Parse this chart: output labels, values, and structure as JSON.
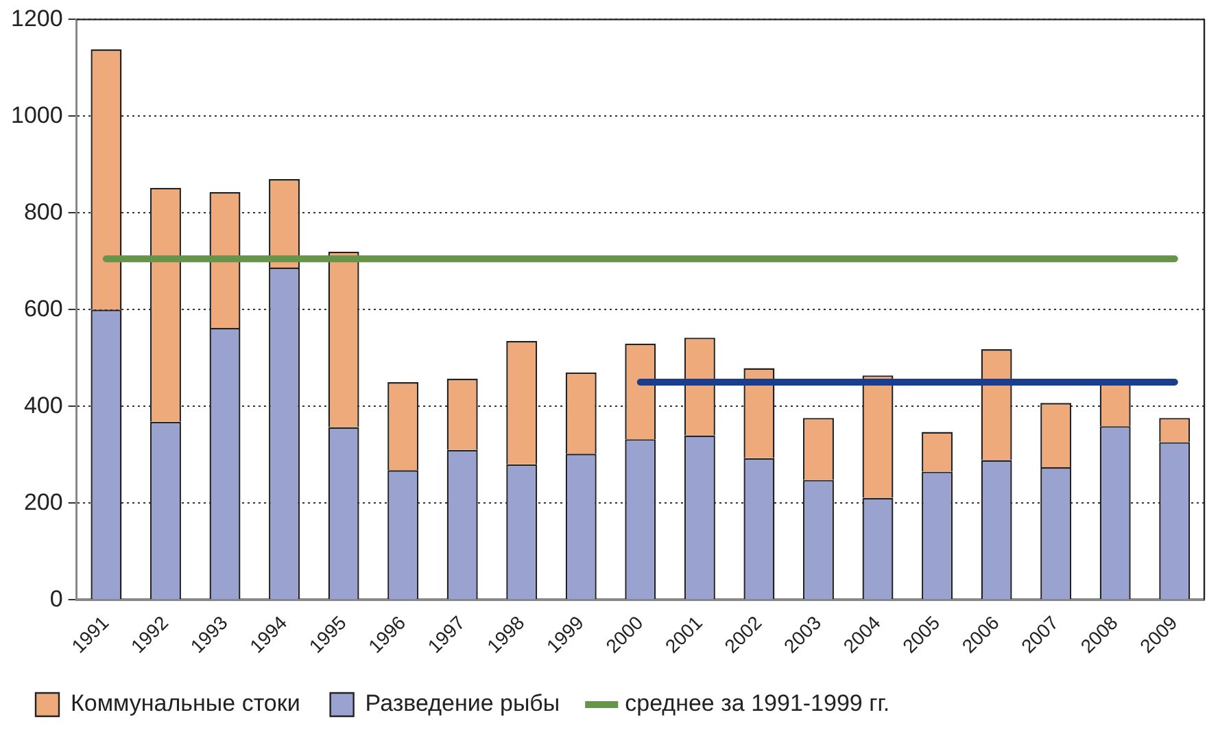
{
  "chart_data": {
    "type": "bar",
    "stacked": true,
    "categories": [
      "1991",
      "1992",
      "1993",
      "1994",
      "1995",
      "1996",
      "1997",
      "1998",
      "1999",
      "2000",
      "2001",
      "2002",
      "2003",
      "2004",
      "2005",
      "2006",
      "2007",
      "2008",
      "2009"
    ],
    "series": [
      {
        "name": "Разведение рыбы",
        "color": "#9aa3d0",
        "values": [
          600,
          368,
          562,
          687,
          357,
          268,
          310,
          280,
          302,
          332,
          340,
          293,
          248,
          211,
          265,
          289,
          274,
          359,
          326
        ]
      },
      {
        "name": "Коммунальные стоки",
        "color": "#eeaa7b",
        "values": [
          538,
          484,
          281,
          183,
          363,
          182,
          147,
          255,
          168,
          198,
          202,
          186,
          128,
          253,
          82,
          229,
          133,
          87,
          50
        ]
      },
      {
        "name": "среднее за 1991-1999 гг.",
        "type": "line",
        "color": "#66944a",
        "values": [
          705,
          705,
          705,
          705,
          705,
          705,
          705,
          705,
          705,
          705,
          705,
          705,
          705,
          705,
          705,
          705,
          705,
          705,
          705
        ]
      },
      {
        "type": "line",
        "color": "#1a3e8c",
        "values": [
          null,
          null,
          null,
          null,
          null,
          null,
          null,
          null,
          null,
          450,
          450,
          450,
          450,
          450,
          450,
          450,
          450,
          450,
          450
        ]
      }
    ],
    "ylim": [
      0,
      1200
    ],
    "yticks": [
      0,
      200,
      400,
      600,
      800,
      1000,
      1200
    ],
    "grid": "y",
    "legend": "bottom",
    "marker": "none"
  }
}
